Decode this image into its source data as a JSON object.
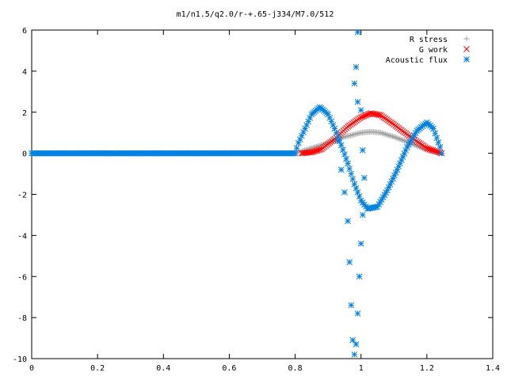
{
  "chart_data": {
    "type": "scatter",
    "title": "m1/n1.5/q2.0/r-+.65-j334/M7.0/512",
    "xlabel": "",
    "ylabel": "",
    "xlim": [
      0,
      1.4
    ],
    "ylim": [
      -10,
      6
    ],
    "xticks": [
      "0",
      "0.2",
      "0.4",
      "0.6",
      "0.8",
      "1",
      "1.2",
      "1.4"
    ],
    "yticks": [
      "6",
      "4",
      "2",
      "0",
      "-2",
      "-4",
      "-6",
      "-8",
      "-10"
    ],
    "grid": false,
    "legend_position": "top-right",
    "series": [
      {
        "name": "R stress",
        "marker": "plus",
        "color": "#a0a0a0",
        "points": [
          [
            0.0,
            0
          ],
          [
            0.1,
            0
          ],
          [
            0.2,
            0
          ],
          [
            0.3,
            0
          ],
          [
            0.4,
            0
          ],
          [
            0.5,
            0
          ],
          [
            0.6,
            0
          ],
          [
            0.7,
            0
          ],
          [
            0.8,
            0
          ],
          [
            0.82,
            0.1
          ],
          [
            0.86,
            0.3
          ],
          [
            0.9,
            0.5
          ],
          [
            0.95,
            0.8
          ],
          [
            1.0,
            1.0
          ],
          [
            1.03,
            1.05
          ],
          [
            1.06,
            1.0
          ],
          [
            1.1,
            0.8
          ],
          [
            1.15,
            0.5
          ],
          [
            1.2,
            0.15
          ],
          [
            1.245,
            0
          ]
        ]
      },
      {
        "name": "G work",
        "marker": "cross",
        "color": "#ff0000",
        "points": [
          [
            0.82,
            0
          ],
          [
            0.85,
            0.05
          ],
          [
            0.88,
            0.2
          ],
          [
            0.92,
            0.7
          ],
          [
            0.96,
            1.3
          ],
          [
            1.0,
            1.75
          ],
          [
            1.03,
            1.95
          ],
          [
            1.06,
            1.85
          ],
          [
            1.1,
            1.4
          ],
          [
            1.15,
            0.8
          ],
          [
            1.2,
            0.25
          ],
          [
            1.245,
            0
          ]
        ]
      },
      {
        "name": "Acoustic flux",
        "marker": "star",
        "color": "#0080e0",
        "points": [
          [
            0.0,
            0
          ],
          [
            0.1,
            0
          ],
          [
            0.2,
            0
          ],
          [
            0.3,
            0
          ],
          [
            0.4,
            0
          ],
          [
            0.5,
            0
          ],
          [
            0.6,
            0
          ],
          [
            0.7,
            0
          ],
          [
            0.8,
            0
          ],
          [
            0.81,
            0.5
          ],
          [
            0.83,
            1.2
          ],
          [
            0.85,
            1.9
          ],
          [
            0.875,
            2.25
          ],
          [
            0.9,
            1.9
          ],
          [
            0.92,
            1.2
          ],
          [
            0.94,
            0.4
          ],
          [
            0.96,
            -0.5
          ],
          [
            0.98,
            -1.5
          ],
          [
            1.0,
            -2.3
          ],
          [
            1.02,
            -2.7
          ],
          [
            1.05,
            -2.6
          ],
          [
            1.08,
            -1.8
          ],
          [
            1.11,
            -0.8
          ],
          [
            1.14,
            0.3
          ],
          [
            1.17,
            1.1
          ],
          [
            1.2,
            1.5
          ],
          [
            1.22,
            1.2
          ],
          [
            1.24,
            0.3
          ],
          [
            1.245,
            0
          ]
        ]
      }
    ],
    "scattered_points": [
      [
        0.93,
        0.6
      ],
      [
        0.94,
        -0.8
      ],
      [
        0.95,
        -1.9
      ],
      [
        0.96,
        -3.3
      ],
      [
        0.965,
        -5.3
      ],
      [
        0.97,
        -7.4
      ],
      [
        0.975,
        -9.1
      ],
      [
        0.98,
        -9.8
      ],
      [
        0.985,
        -9.3
      ],
      [
        0.99,
        -7.8
      ],
      [
        0.995,
        -6.0
      ],
      [
        1.0,
        -4.4
      ],
      [
        1.005,
        -3.0
      ],
      [
        0.99,
        5.9
      ],
      [
        0.985,
        4.2
      ],
      [
        0.98,
        3.4
      ],
      [
        0.99,
        2.5
      ],
      [
        1.0,
        2.1
      ],
      [
        1.005,
        0.15
      ],
      [
        1.01,
        -1.2
      ]
    ]
  }
}
